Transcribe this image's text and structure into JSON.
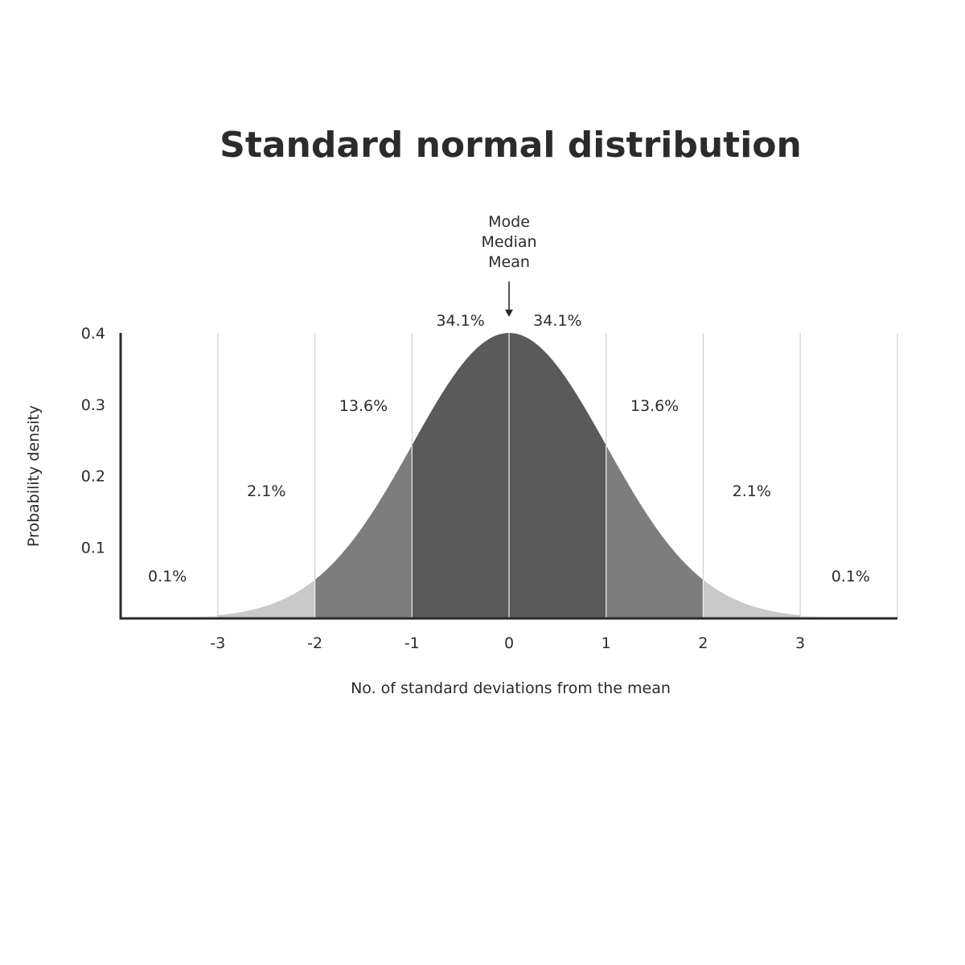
{
  "chart_data": {
    "type": "area",
    "title": "Standard normal distribution",
    "xlabel": "No. of standard deviations from the mean",
    "ylabel": "Probability density",
    "xlim": [
      -4,
      4
    ],
    "ylim": [
      0,
      0.4
    ],
    "x_ticks": [
      "-3",
      "-2",
      "-1",
      "0",
      "1",
      "2",
      "3"
    ],
    "x_tick_values": [
      -3,
      -2,
      -1,
      0,
      1,
      2,
      3
    ],
    "y_ticks": [
      "0.1",
      "0.2",
      "0.3",
      "0.4"
    ],
    "y_tick_values": [
      0.1,
      0.2,
      0.3,
      0.4
    ],
    "grid": "vertical lines at each standard deviation",
    "distribution": {
      "mean": 0,
      "sd": 1
    },
    "regions": [
      {
        "from": -4,
        "to": -3,
        "label": "0.1%",
        "color": "#ececec"
      },
      {
        "from": -3,
        "to": -2,
        "label": "2.1%",
        "color": "#c9c9c9"
      },
      {
        "from": -2,
        "to": -1,
        "label": "13.6%",
        "color": "#7d7d7d"
      },
      {
        "from": -1,
        "to": 0,
        "label": "34.1%",
        "color": "#5a5a5a"
      },
      {
        "from": 0,
        "to": 1,
        "label": "34.1%",
        "color": "#5a5a5a"
      },
      {
        "from": 1,
        "to": 2,
        "label": "13.6%",
        "color": "#7d7d7d"
      },
      {
        "from": 2,
        "to": 3,
        "label": "2.1%",
        "color": "#c9c9c9"
      },
      {
        "from": 3,
        "to": 4,
        "label": "0.1%",
        "color": "#ececec"
      }
    ],
    "annotation": {
      "x": 0,
      "lines": [
        "Mode",
        "Median",
        "Mean"
      ]
    },
    "colors": {
      "text": "#2b2b2b",
      "axis": "#2b2b2b",
      "grid": "#cfcfcf",
      "region_divider": "#f0f0f0"
    }
  }
}
